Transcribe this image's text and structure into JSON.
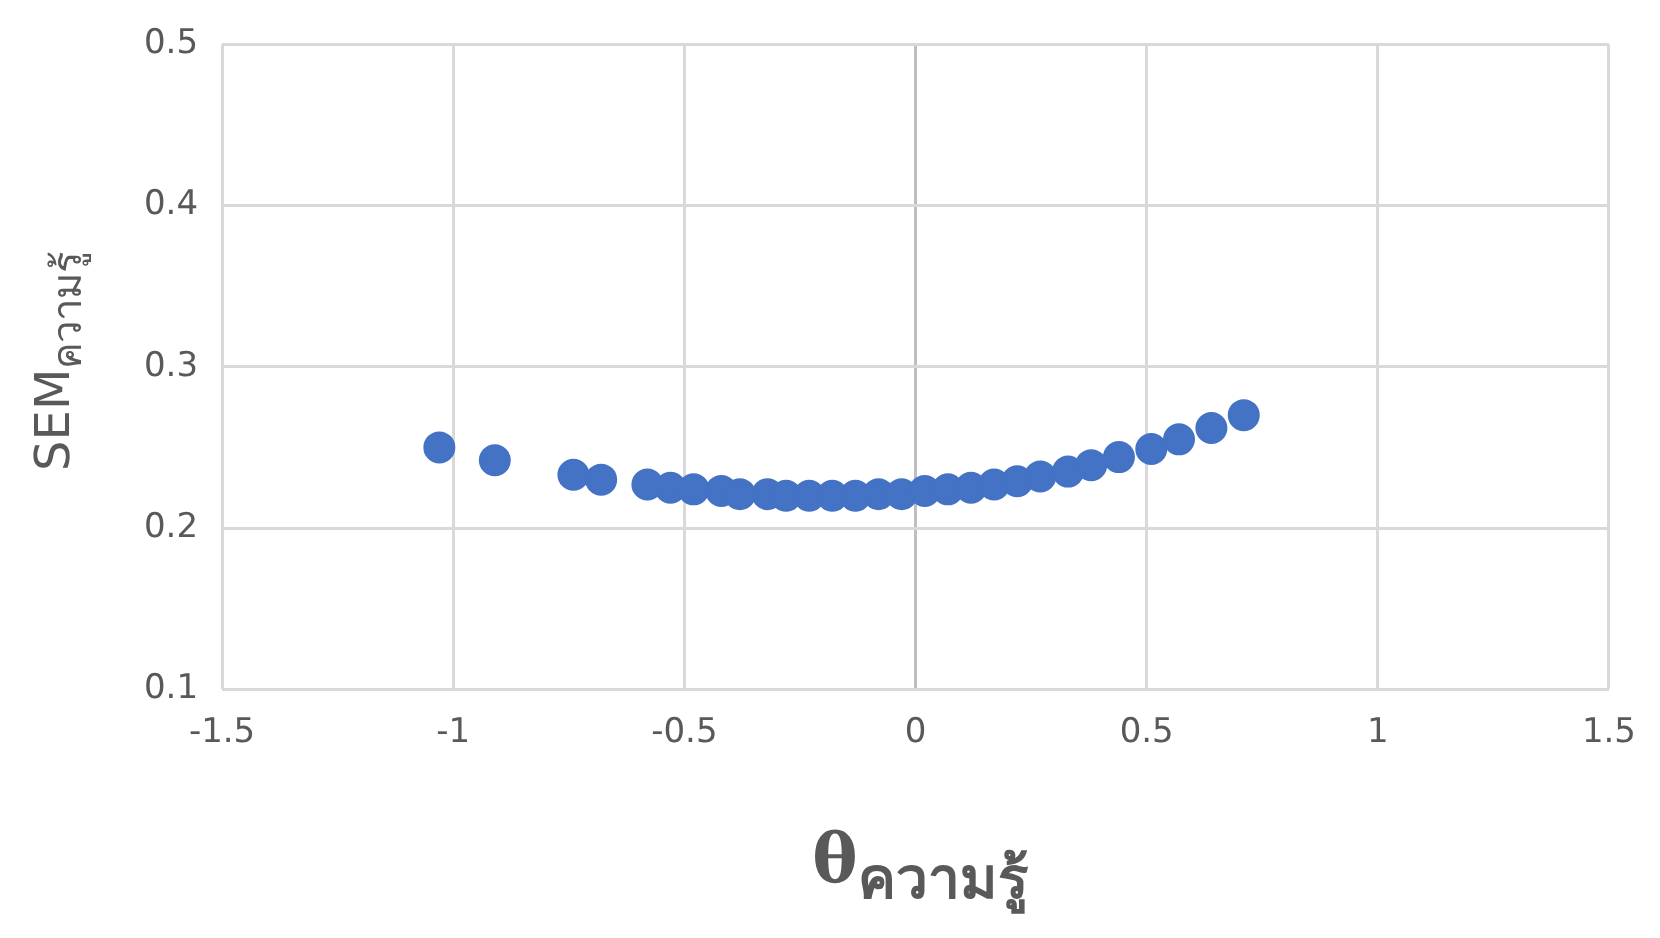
{
  "chart_data": {
    "type": "scatter",
    "xlabel": "θ$_{ความรู้}$",
    "ylabel": "SEM$_{ความรู้}$",
    "xlim": [
      -1.5,
      1.5
    ],
    "ylim": [
      0.1,
      0.5
    ],
    "xticks": [
      -1.5,
      -1,
      -0.5,
      0,
      0.5,
      1,
      1.5
    ],
    "yticks": [
      0.1,
      0.2,
      0.3,
      0.4,
      0.5
    ],
    "grid": true,
    "legend": false,
    "marker": "circle",
    "series": [
      {
        "color": "#4472c4",
        "x": [
          -1.03,
          -0.91,
          -0.74,
          -0.68,
          -0.58,
          -0.53,
          -0.48,
          -0.42,
          -0.38,
          -0.32,
          -0.28,
          -0.23,
          -0.18,
          -0.13,
          -0.08,
          -0.03,
          0.02,
          0.07,
          0.12,
          0.17,
          0.22,
          0.27,
          0.33,
          0.38,
          0.44,
          0.51,
          0.57,
          0.64,
          0.71
        ],
        "values": [
          0.25,
          0.242,
          0.233,
          0.23,
          0.227,
          0.225,
          0.224,
          0.223,
          0.221,
          0.221,
          0.22,
          0.22,
          0.22,
          0.22,
          0.221,
          0.221,
          0.223,
          0.224,
          0.225,
          0.227,
          0.229,
          0.232,
          0.235,
          0.239,
          0.244,
          0.249,
          0.255,
          0.262,
          0.27
        ]
      }
    ]
  }
}
